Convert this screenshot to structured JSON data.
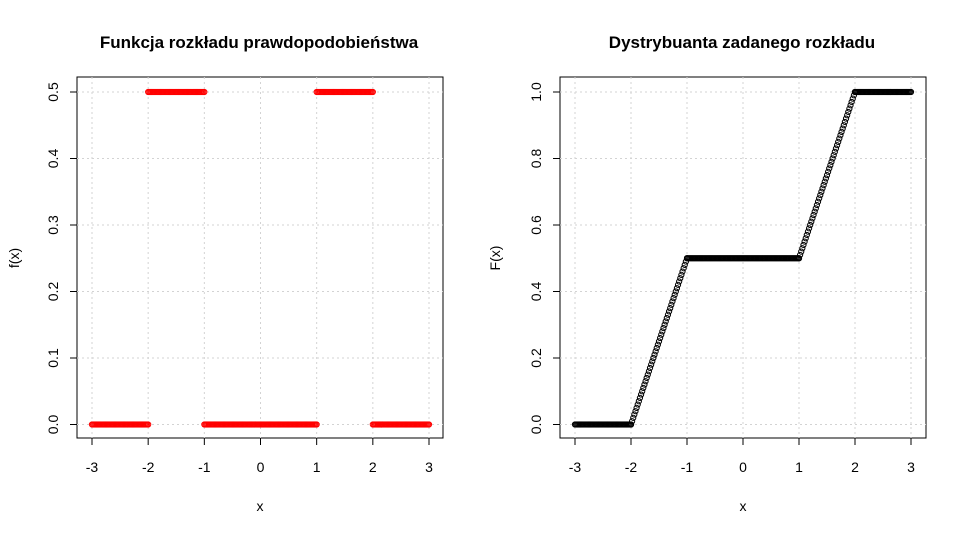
{
  "chart_data": [
    {
      "type": "scatter",
      "title": "Funkcja rozkładu prawdopodobieństwa",
      "xlabel": "x",
      "ylabel": "f(x)",
      "xlim": [
        -3,
        3
      ],
      "ylim": [
        0,
        0.5
      ],
      "xticks": [
        -3,
        -2,
        -1,
        0,
        1,
        2,
        3
      ],
      "xtick_labels": [
        "-3",
        "-2",
        "-1",
        "0",
        "1",
        "2",
        "3"
      ],
      "yticks": [
        0,
        0.1,
        0.2,
        0.3,
        0.4,
        0.5
      ],
      "ytick_labels": [
        "0.0",
        "0.1",
        "0.2",
        "0.3",
        "0.4",
        "0.5"
      ],
      "grid": true,
      "marker": "open-circle",
      "color": "#ff0000",
      "segments": [
        {
          "x": [
            -3,
            -2
          ],
          "y": [
            0,
            0
          ]
        },
        {
          "x": [
            -2,
            -1
          ],
          "y": [
            0.5,
            0.5
          ]
        },
        {
          "x": [
            -1,
            1
          ],
          "y": [
            0,
            0
          ]
        },
        {
          "x": [
            1,
            2
          ],
          "y": [
            0.5,
            0.5
          ]
        },
        {
          "x": [
            2,
            3
          ],
          "y": [
            0,
            0
          ]
        }
      ]
    },
    {
      "type": "scatter",
      "title": "Dystrybuanta zadanego rozkładu",
      "xlabel": "x",
      "ylabel": "F(x)",
      "xlim": [
        -3,
        3
      ],
      "ylim": [
        0,
        1
      ],
      "xticks": [
        -3,
        -2,
        -1,
        0,
        1,
        2,
        3
      ],
      "xtick_labels": [
        "-3",
        "-2",
        "-1",
        "0",
        "1",
        "2",
        "3"
      ],
      "yticks": [
        0,
        0.2,
        0.4,
        0.6,
        0.8,
        1.0
      ],
      "ytick_labels": [
        "0.0",
        "0.2",
        "0.4",
        "0.6",
        "0.8",
        "1.0"
      ],
      "grid": true,
      "marker": "open-circle",
      "color": "#000000",
      "segments": [
        {
          "x": [
            -3,
            -2
          ],
          "y": [
            0,
            0
          ]
        },
        {
          "x": [
            -2,
            -1
          ],
          "y": [
            0,
            0.5
          ]
        },
        {
          "x": [
            -1,
            1
          ],
          "y": [
            0.5,
            0.5
          ]
        },
        {
          "x": [
            1,
            2
          ],
          "y": [
            0.5,
            1
          ]
        },
        {
          "x": [
            2,
            3
          ],
          "y": [
            1,
            1
          ]
        }
      ]
    }
  ]
}
